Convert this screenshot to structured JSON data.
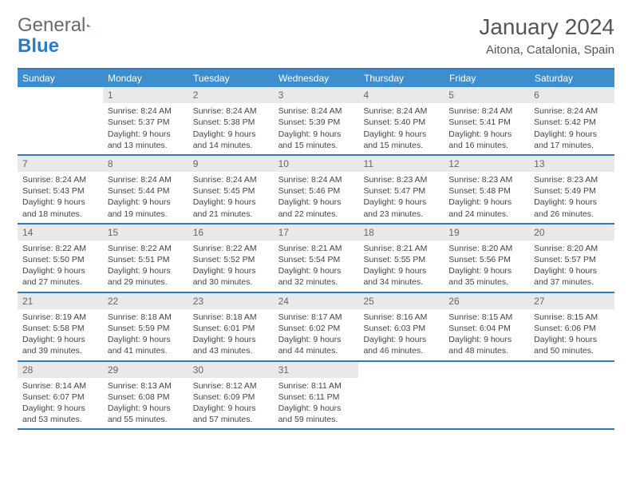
{
  "logo": {
    "text1": "General",
    "text2": "Blue",
    "tri_color": "#2f7bbf"
  },
  "title": "January 2024",
  "location": "Aitona, Catalonia, Spain",
  "colors": {
    "header_bar": "#3d8ecf",
    "border": "#2f7bbf",
    "daynum_bg": "#e9e9e9",
    "text": "#444444"
  },
  "day_headers": [
    "Sunday",
    "Monday",
    "Tuesday",
    "Wednesday",
    "Thursday",
    "Friday",
    "Saturday"
  ],
  "weeks": [
    [
      {
        "n": "",
        "sr": "",
        "ss": "",
        "dl": ""
      },
      {
        "n": "1",
        "sr": "Sunrise: 8:24 AM",
        "ss": "Sunset: 5:37 PM",
        "dl": "Daylight: 9 hours and 13 minutes."
      },
      {
        "n": "2",
        "sr": "Sunrise: 8:24 AM",
        "ss": "Sunset: 5:38 PM",
        "dl": "Daylight: 9 hours and 14 minutes."
      },
      {
        "n": "3",
        "sr": "Sunrise: 8:24 AM",
        "ss": "Sunset: 5:39 PM",
        "dl": "Daylight: 9 hours and 15 minutes."
      },
      {
        "n": "4",
        "sr": "Sunrise: 8:24 AM",
        "ss": "Sunset: 5:40 PM",
        "dl": "Daylight: 9 hours and 15 minutes."
      },
      {
        "n": "5",
        "sr": "Sunrise: 8:24 AM",
        "ss": "Sunset: 5:41 PM",
        "dl": "Daylight: 9 hours and 16 minutes."
      },
      {
        "n": "6",
        "sr": "Sunrise: 8:24 AM",
        "ss": "Sunset: 5:42 PM",
        "dl": "Daylight: 9 hours and 17 minutes."
      }
    ],
    [
      {
        "n": "7",
        "sr": "Sunrise: 8:24 AM",
        "ss": "Sunset: 5:43 PM",
        "dl": "Daylight: 9 hours and 18 minutes."
      },
      {
        "n": "8",
        "sr": "Sunrise: 8:24 AM",
        "ss": "Sunset: 5:44 PM",
        "dl": "Daylight: 9 hours and 19 minutes."
      },
      {
        "n": "9",
        "sr": "Sunrise: 8:24 AM",
        "ss": "Sunset: 5:45 PM",
        "dl": "Daylight: 9 hours and 21 minutes."
      },
      {
        "n": "10",
        "sr": "Sunrise: 8:24 AM",
        "ss": "Sunset: 5:46 PM",
        "dl": "Daylight: 9 hours and 22 minutes."
      },
      {
        "n": "11",
        "sr": "Sunrise: 8:23 AM",
        "ss": "Sunset: 5:47 PM",
        "dl": "Daylight: 9 hours and 23 minutes."
      },
      {
        "n": "12",
        "sr": "Sunrise: 8:23 AM",
        "ss": "Sunset: 5:48 PM",
        "dl": "Daylight: 9 hours and 24 minutes."
      },
      {
        "n": "13",
        "sr": "Sunrise: 8:23 AM",
        "ss": "Sunset: 5:49 PM",
        "dl": "Daylight: 9 hours and 26 minutes."
      }
    ],
    [
      {
        "n": "14",
        "sr": "Sunrise: 8:22 AM",
        "ss": "Sunset: 5:50 PM",
        "dl": "Daylight: 9 hours and 27 minutes."
      },
      {
        "n": "15",
        "sr": "Sunrise: 8:22 AM",
        "ss": "Sunset: 5:51 PM",
        "dl": "Daylight: 9 hours and 29 minutes."
      },
      {
        "n": "16",
        "sr": "Sunrise: 8:22 AM",
        "ss": "Sunset: 5:52 PM",
        "dl": "Daylight: 9 hours and 30 minutes."
      },
      {
        "n": "17",
        "sr": "Sunrise: 8:21 AM",
        "ss": "Sunset: 5:54 PM",
        "dl": "Daylight: 9 hours and 32 minutes."
      },
      {
        "n": "18",
        "sr": "Sunrise: 8:21 AM",
        "ss": "Sunset: 5:55 PM",
        "dl": "Daylight: 9 hours and 34 minutes."
      },
      {
        "n": "19",
        "sr": "Sunrise: 8:20 AM",
        "ss": "Sunset: 5:56 PM",
        "dl": "Daylight: 9 hours and 35 minutes."
      },
      {
        "n": "20",
        "sr": "Sunrise: 8:20 AM",
        "ss": "Sunset: 5:57 PM",
        "dl": "Daylight: 9 hours and 37 minutes."
      }
    ],
    [
      {
        "n": "21",
        "sr": "Sunrise: 8:19 AM",
        "ss": "Sunset: 5:58 PM",
        "dl": "Daylight: 9 hours and 39 minutes."
      },
      {
        "n": "22",
        "sr": "Sunrise: 8:18 AM",
        "ss": "Sunset: 5:59 PM",
        "dl": "Daylight: 9 hours and 41 minutes."
      },
      {
        "n": "23",
        "sr": "Sunrise: 8:18 AM",
        "ss": "Sunset: 6:01 PM",
        "dl": "Daylight: 9 hours and 43 minutes."
      },
      {
        "n": "24",
        "sr": "Sunrise: 8:17 AM",
        "ss": "Sunset: 6:02 PM",
        "dl": "Daylight: 9 hours and 44 minutes."
      },
      {
        "n": "25",
        "sr": "Sunrise: 8:16 AM",
        "ss": "Sunset: 6:03 PM",
        "dl": "Daylight: 9 hours and 46 minutes."
      },
      {
        "n": "26",
        "sr": "Sunrise: 8:15 AM",
        "ss": "Sunset: 6:04 PM",
        "dl": "Daylight: 9 hours and 48 minutes."
      },
      {
        "n": "27",
        "sr": "Sunrise: 8:15 AM",
        "ss": "Sunset: 6:06 PM",
        "dl": "Daylight: 9 hours and 50 minutes."
      }
    ],
    [
      {
        "n": "28",
        "sr": "Sunrise: 8:14 AM",
        "ss": "Sunset: 6:07 PM",
        "dl": "Daylight: 9 hours and 53 minutes."
      },
      {
        "n": "29",
        "sr": "Sunrise: 8:13 AM",
        "ss": "Sunset: 6:08 PM",
        "dl": "Daylight: 9 hours and 55 minutes."
      },
      {
        "n": "30",
        "sr": "Sunrise: 8:12 AM",
        "ss": "Sunset: 6:09 PM",
        "dl": "Daylight: 9 hours and 57 minutes."
      },
      {
        "n": "31",
        "sr": "Sunrise: 8:11 AM",
        "ss": "Sunset: 6:11 PM",
        "dl": "Daylight: 9 hours and 59 minutes."
      },
      {
        "n": "",
        "sr": "",
        "ss": "",
        "dl": ""
      },
      {
        "n": "",
        "sr": "",
        "ss": "",
        "dl": ""
      },
      {
        "n": "",
        "sr": "",
        "ss": "",
        "dl": ""
      }
    ]
  ]
}
